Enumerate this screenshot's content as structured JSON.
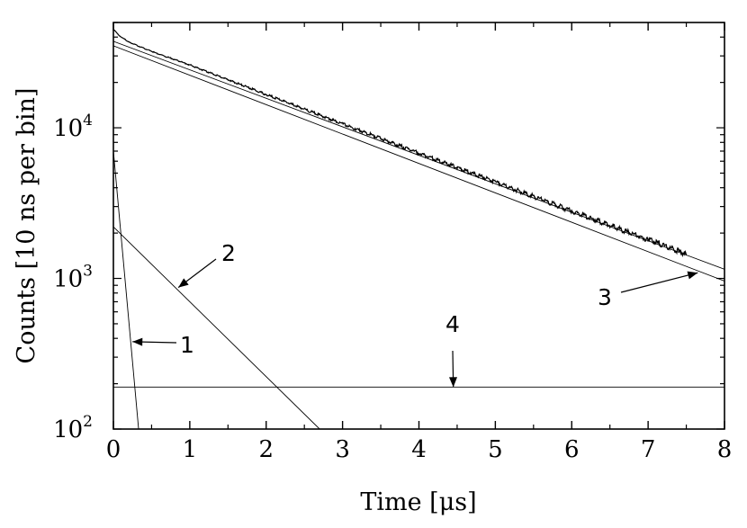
{
  "chart_data": {
    "type": "line",
    "title": "",
    "xlabel": "Time [μs]",
    "ylabel": "Counts [10 ns per bin]",
    "xlim": [
      0,
      8
    ],
    "ylim": [
      100,
      50000
    ],
    "yscale": "log",
    "grid": false,
    "x_ticks": [
      "0",
      "1",
      "2",
      "3",
      "4",
      "5",
      "6",
      "7",
      "8"
    ],
    "y_ticks": [
      {
        "value": 100,
        "base": "10",
        "exp": "2"
      },
      {
        "value": 1000,
        "base": "10",
        "exp": "3"
      },
      {
        "value": 10000,
        "base": "10",
        "exp": "4"
      }
    ],
    "series": [
      {
        "kind": "measured",
        "color": "#000000",
        "x": [
          0,
          0.02,
          0.05,
          0.1,
          0.2,
          0.5,
          1,
          2,
          3,
          4,
          5,
          6,
          7,
          7.5
        ],
        "y": [
          45000,
          44000,
          42000,
          40000,
          37000,
          32000,
          26000,
          16500,
          10500,
          6700,
          4300,
          2750,
          1770,
          1420
        ]
      },
      {
        "kind": "fit",
        "color": "#000000",
        "x": [
          0,
          8
        ],
        "y": [
          37500,
          1150
        ]
      },
      {
        "kind": "component",
        "label": "1",
        "color": "#000000",
        "x": [
          0,
          0.33
        ],
        "y": [
          7000,
          100
        ]
      },
      {
        "kind": "component",
        "label": "2",
        "color": "#000000",
        "x": [
          0,
          2.7
        ],
        "y": [
          2200,
          100
        ]
      },
      {
        "kind": "component",
        "label": "3",
        "color": "#000000",
        "x": [
          0,
          8
        ],
        "y": [
          35000,
          960
        ]
      },
      {
        "kind": "component",
        "label": "4",
        "color": "#000000",
        "x": [
          0,
          8
        ],
        "y": [
          190,
          190
        ]
      }
    ],
    "annotations": [
      {
        "text": "1",
        "points_to": {
          "x": 0.25,
          "y": 380
        }
      },
      {
        "text": "2",
        "points_to": {
          "x": 0.85,
          "y": 870
        }
      },
      {
        "text": "3",
        "points_to": {
          "x": 7.65,
          "y": 1090
        }
      },
      {
        "text": "4",
        "points_to": {
          "x": 4.45,
          "y": 190
        }
      }
    ]
  }
}
